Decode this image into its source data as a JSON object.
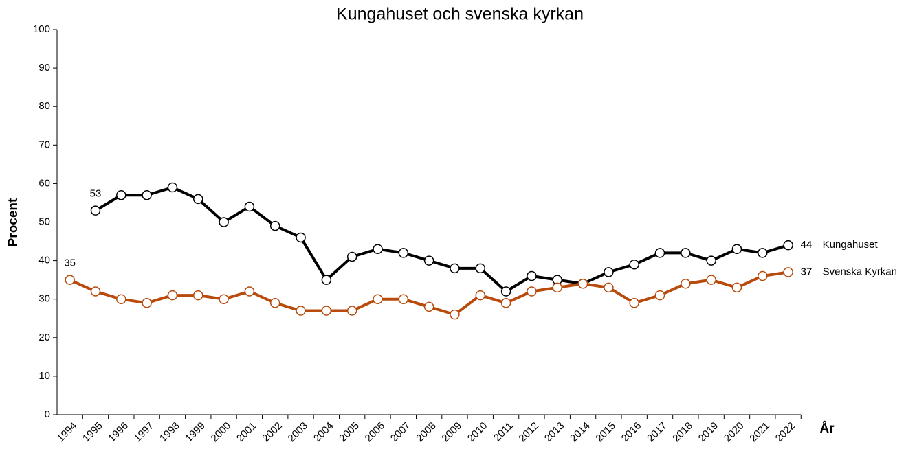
{
  "chart_data": {
    "type": "line",
    "title": "Kungahuset och svenska kyrkan",
    "x_label": "År",
    "y_label": "Procent",
    "categories": [
      "1994",
      "1995",
      "1996",
      "1997",
      "1998",
      "1999",
      "2000",
      "2001",
      "2002",
      "2003",
      "2004",
      "2005",
      "2006",
      "2007",
      "2008",
      "2009",
      "2010",
      "2011",
      "2012",
      "2013",
      "2014",
      "2015",
      "2016",
      "2017",
      "2018",
      "2019",
      "2020",
      "2021",
      "2022"
    ],
    "series": [
      {
        "name": "Kungahuset",
        "color": "#000000",
        "values": [
          null,
          53,
          57,
          57,
          59,
          56,
          50,
          54,
          49,
          46,
          35,
          41,
          43,
          42,
          40,
          38,
          38,
          32,
          36,
          35,
          34,
          37,
          39,
          42,
          42,
          40,
          43,
          42,
          44
        ]
      },
      {
        "name": "Svenska Kyrkan",
        "color": "#b84a0c",
        "values": [
          35,
          32,
          30,
          29,
          31,
          31,
          30,
          32,
          29,
          27,
          27,
          27,
          30,
          30,
          28,
          26,
          31,
          29,
          32,
          33,
          34,
          33,
          29,
          31,
          34,
          35,
          33,
          36,
          37
        ]
      }
    ],
    "ylim": [
      0,
      100
    ],
    "yticks": [
      0,
      10,
      20,
      30,
      40,
      50,
      60,
      70,
      80,
      90,
      100
    ],
    "grid": false
  }
}
